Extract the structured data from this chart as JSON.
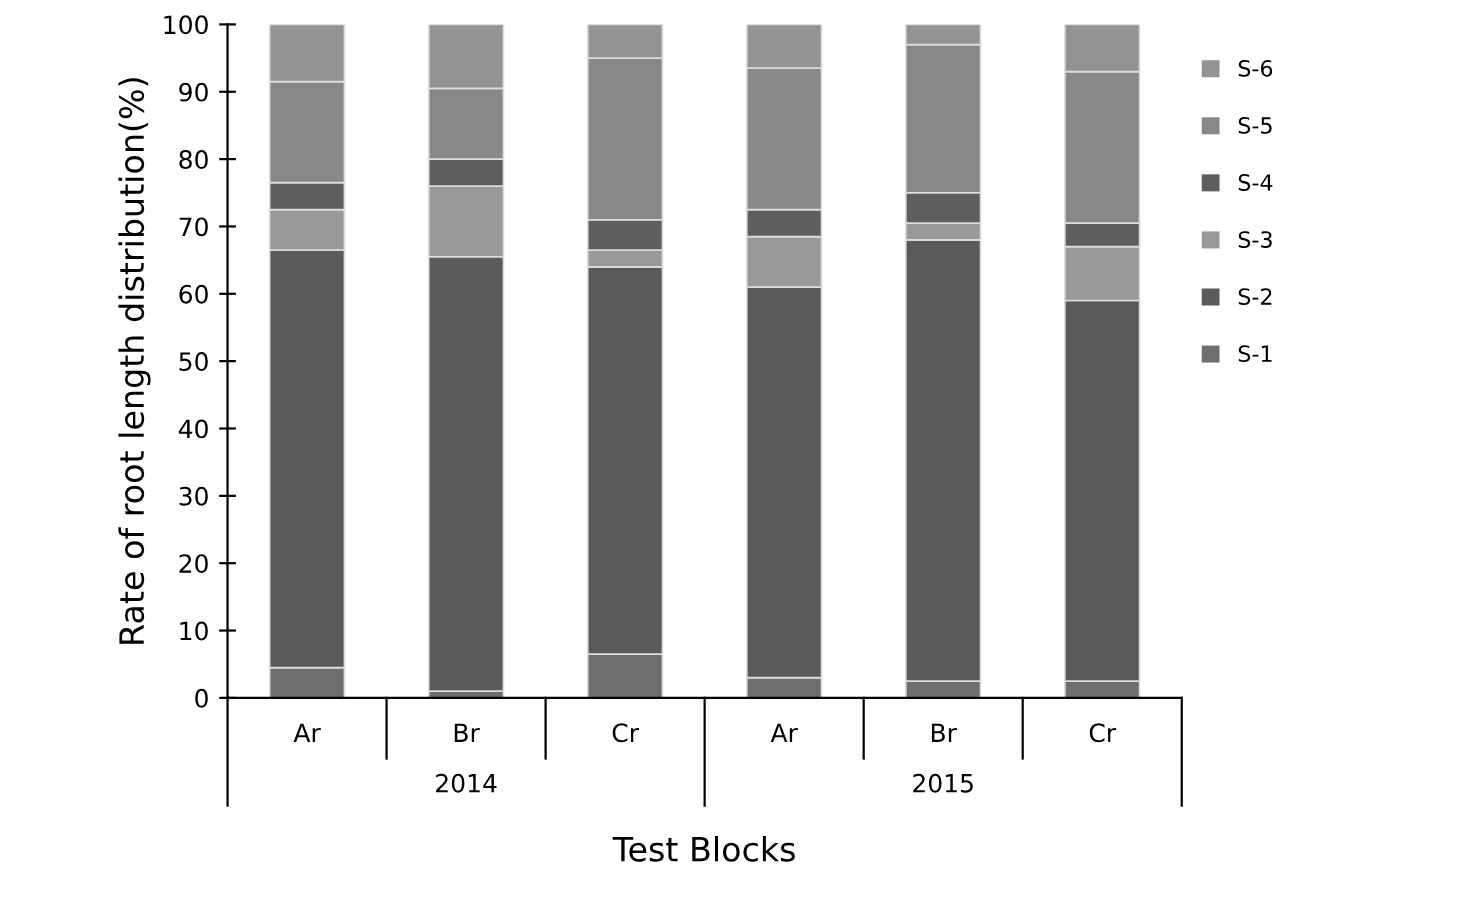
{
  "chart_data": {
    "type": "bar",
    "stacked": true,
    "xlabel": "Test Blocks",
    "ylabel": "Rate of root length distribution(%)",
    "categories": [
      "Ar",
      "Br",
      "Cr",
      "Ar",
      "Br",
      "Cr"
    ],
    "annotations": [
      "2014",
      "2015"
    ],
    "series": [
      {
        "name": "S-1",
        "color": "#6e6e6e",
        "values": [
          4.5,
          1,
          6.5,
          3,
          2.5,
          2.5
        ]
      },
      {
        "name": "S-2",
        "color": "#5a5a5a",
        "values": [
          62,
          64.5,
          57.5,
          58,
          65.5,
          56.5
        ]
      },
      {
        "name": "S-3",
        "color": "#999999",
        "values": [
          6,
          10.5,
          2.5,
          7.5,
          2.5,
          8
        ]
      },
      {
        "name": "S-4",
        "color": "#5e5e5e",
        "values": [
          4,
          4,
          4.5,
          4,
          4.5,
          3.5
        ]
      },
      {
        "name": "S-5",
        "color": "#888888",
        "values": [
          15,
          10.5,
          24,
          21,
          22,
          22.5
        ]
      },
      {
        "name": "S-6",
        "color": "#939393",
        "values": [
          8.5,
          9.5,
          5,
          6.5,
          3,
          7
        ]
      }
    ],
    "ylim": [
      0,
      100
    ],
    "yticks": [
      0,
      10,
      20,
      30,
      40,
      50,
      60,
      70,
      80,
      90,
      100
    ],
    "legend": "right",
    "grid": false
  }
}
